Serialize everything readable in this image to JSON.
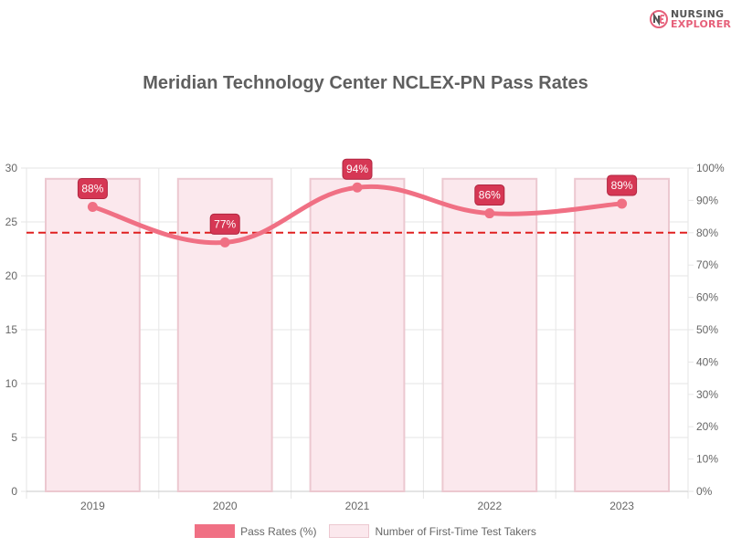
{
  "brand": {
    "line1": "NURSING",
    "line2": "EXPLORER"
  },
  "chart_data": {
    "type": "bar",
    "title": "Meridian Technology Center NCLEX-PN Pass Rates",
    "categories": [
      "2019",
      "2020",
      "2021",
      "2022",
      "2023"
    ],
    "series": [
      {
        "name": "Pass Rates (%)",
        "type": "line",
        "axis": "right",
        "values": [
          88,
          77,
          94,
          86,
          89
        ],
        "labels": [
          "88%",
          "77%",
          "94%",
          "86%",
          "89%"
        ],
        "color": "#f07084"
      },
      {
        "name": "Number of First-Time Test Takers",
        "type": "bar",
        "axis": "left",
        "values": [
          29,
          29,
          29,
          29,
          29
        ],
        "color": "#fbe8ed",
        "border_color": "#ecc8d0"
      }
    ],
    "reference_line": {
      "axis": "right",
      "value": 80,
      "color": "#e02020",
      "style": "dashed"
    },
    "y_left": {
      "min": 0,
      "max": 30,
      "ticks": [
        "0",
        "5",
        "10",
        "15",
        "20",
        "25",
        "30"
      ]
    },
    "y_right": {
      "min": 0,
      "max": 100,
      "ticks": [
        "0%",
        "10%",
        "20%",
        "30%",
        "40%",
        "50%",
        "60%",
        "70%",
        "80%",
        "90%",
        "100%"
      ]
    },
    "grid": true,
    "legend_position": "bottom",
    "label_color": "#d63754"
  }
}
